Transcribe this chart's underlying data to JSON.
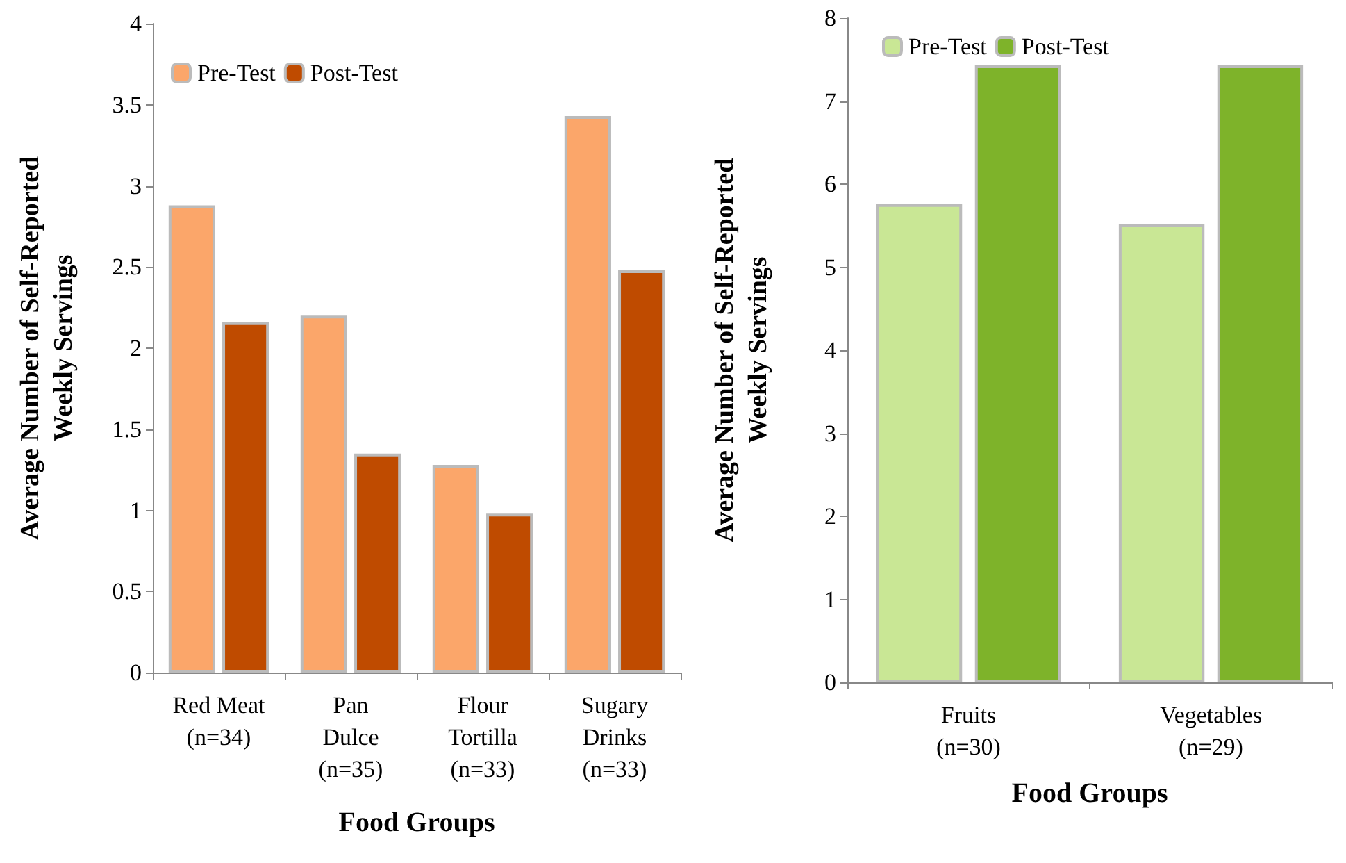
{
  "chart_data": [
    {
      "type": "bar",
      "xlabel": "Food Groups",
      "ylabel": "Average Number of Self-Reported\nWeekly Servings",
      "categories": [
        "Red Meat\n(n=34)",
        "Pan\nDulce\n(n=35)",
        "Flour\nTortilla\n(n=33)",
        "Sugary\nDrinks\n(n=33)"
      ],
      "series": [
        {
          "name": "Pre-Test",
          "color": "#fba66a",
          "values": [
            2.88,
            2.2,
            1.28,
            3.43
          ]
        },
        {
          "name": "Post-Test",
          "color": "#bf4b00",
          "values": [
            2.16,
            1.35,
            0.98,
            2.48
          ]
        }
      ],
      "ylim": [
        0,
        4
      ],
      "yticks": [
        0,
        0.5,
        1,
        1.5,
        2,
        2.5,
        3,
        3.5,
        4
      ],
      "grid": false,
      "legend": "top left"
    },
    {
      "type": "bar",
      "xlabel": "Food Groups",
      "ylabel": "Average Number of Self-Reported\nWeekly Servings",
      "categories": [
        "Fruits\n(n=30)",
        "Vegetables\n(n=29)"
      ],
      "series": [
        {
          "name": "Pre-Test",
          "color": "#c9e795",
          "values": [
            5.76,
            5.52
          ]
        },
        {
          "name": "Post-Test",
          "color": "#7eb32a",
          "values": [
            7.43,
            7.43
          ]
        }
      ],
      "ylim": [
        0,
        8
      ],
      "yticks": [
        0,
        1,
        2,
        3,
        4,
        5,
        6,
        7,
        8
      ],
      "grid": false,
      "legend": "top left"
    }
  ]
}
